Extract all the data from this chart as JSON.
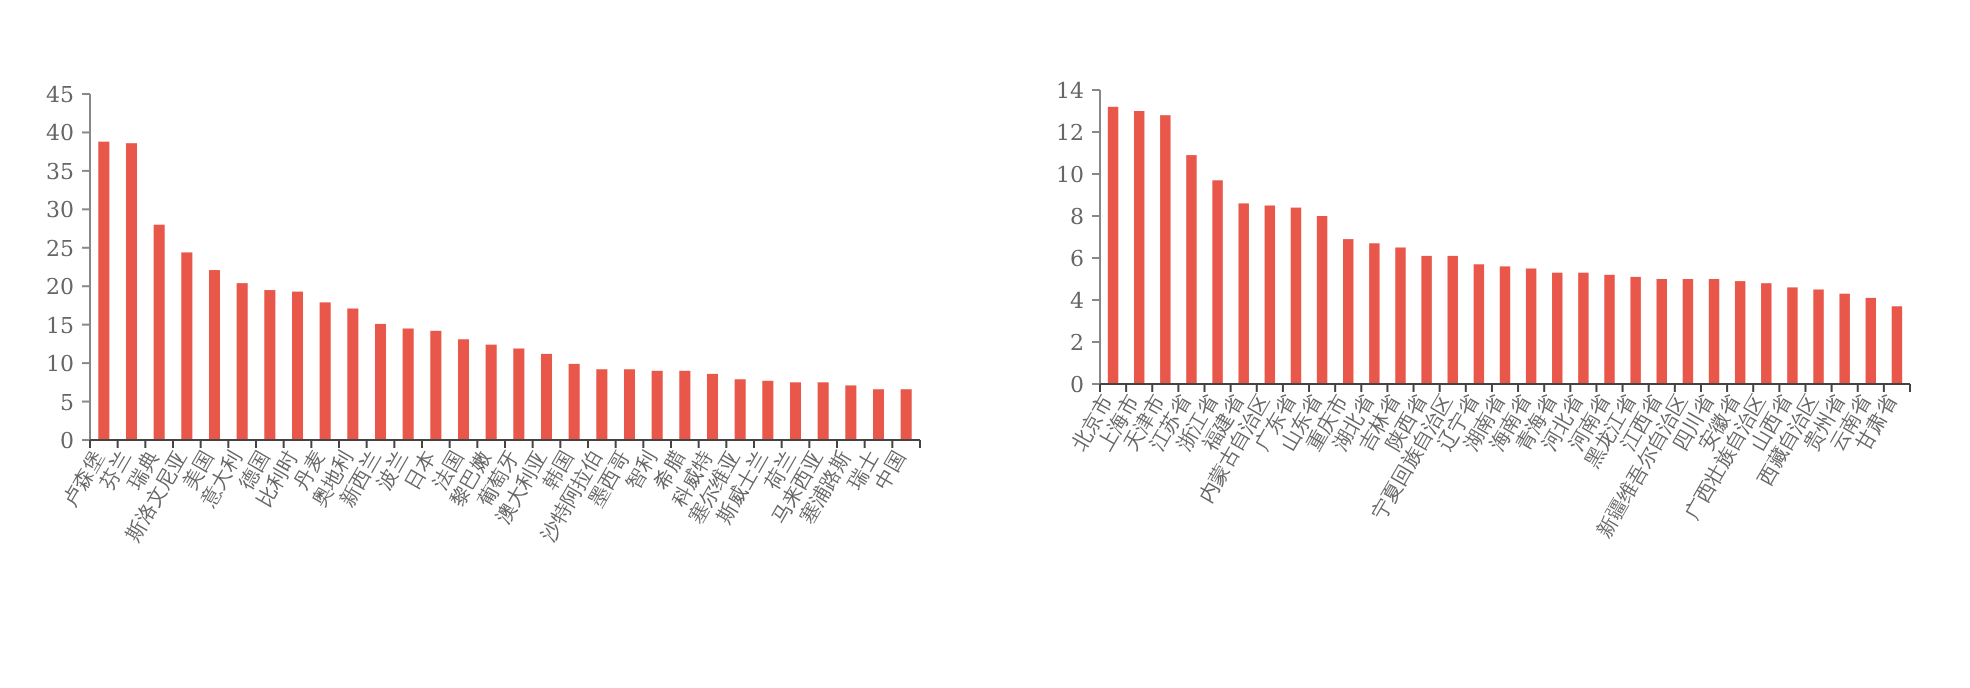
{
  "chart_data": [
    {
      "type": "bar",
      "categories": [
        "卢森堡",
        "芬兰",
        "瑞典",
        "斯洛文尼亚",
        "美国",
        "意大利",
        "德国",
        "比利时",
        "丹麦",
        "奥地利",
        "新西兰",
        "波兰",
        "日本",
        "法国",
        "黎巴嫩",
        "葡萄牙",
        "澳大利亚",
        "韩国",
        "沙特阿拉伯",
        "墨西哥",
        "智利",
        "希腊",
        "科威特",
        "塞尔维亚",
        "斯威士兰",
        "荷兰",
        "马来西亚",
        "塞浦路斯",
        "瑞士",
        "中国"
      ],
      "series": [
        {
          "color": "#e8574a",
          "values": [
            38.8,
            38.6,
            28,
            24.4,
            22.1,
            20.4,
            19.5,
            19.3,
            17.9,
            17.1,
            15.1,
            14.5,
            14.2,
            13.1,
            12.4,
            11.9,
            11.2,
            9.9,
            9.2,
            9.2,
            9.0,
            9.0,
            8.6,
            7.9,
            7.7,
            7.5,
            7.5,
            7.1,
            6.6,
            6.6
          ]
        }
      ],
      "ylim": [
        0,
        45
      ],
      "yticks": [
        0,
        5,
        10,
        15,
        20,
        25,
        30,
        35,
        40,
        45
      ],
      "grid": false
    },
    {
      "type": "bar",
      "categories": [
        "北京市",
        "上海市",
        "天津市",
        "江苏省",
        "浙江省",
        "福建省",
        "内蒙古自治区",
        "广东省",
        "山东省",
        "重庆市",
        "湖北省",
        "吉林省",
        "陕西省",
        "宁夏回族自治区",
        "辽宁省",
        "湖南省",
        "海南省",
        "青海省",
        "河北省",
        "河南省",
        "黑龙江省",
        "江西省",
        "新疆维吾尔自治区",
        "四川省",
        "安徽省",
        "广西壮族自治区",
        "山西省",
        "西藏自治区",
        "贵州省",
        "云南省",
        "甘肃省"
      ],
      "series": [
        {
          "color": "#e8574a",
          "values": [
            13.2,
            13.0,
            12.8,
            10.9,
            9.7,
            8.6,
            8.5,
            8.4,
            8.0,
            6.9,
            6.7,
            6.5,
            6.1,
            6.1,
            5.7,
            5.6,
            5.5,
            5.3,
            5.3,
            5.2,
            5.1,
            5.0,
            5.0,
            5.0,
            4.9,
            4.8,
            4.6,
            4.5,
            4.3,
            4.1,
            3.7
          ]
        }
      ],
      "ylim": [
        0,
        14
      ],
      "yticks": [
        0,
        2,
        4,
        6,
        8,
        10,
        12,
        14
      ],
      "grid": false
    }
  ]
}
